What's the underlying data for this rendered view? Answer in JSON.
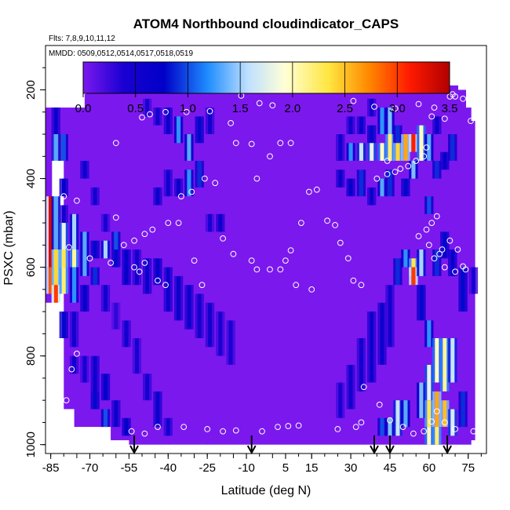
{
  "chart_data": {
    "type": "heatmap",
    "title": "ATOM4 Northbound cloudindicator_CAPS",
    "subtitle_flights": "Flts: 7,8,9,10,11,12",
    "subtitle_dates": "MMDD: 0509,0512,0514,0517,0518,0519",
    "xlabel": "Latitude (deg N)",
    "ylabel": "PSXC (mbar)",
    "xlim": [
      -87,
      82
    ],
    "ylim": [
      1020,
      100
    ],
    "x_ticks": [
      -85,
      -70,
      -55,
      -40,
      -25,
      -10,
      5,
      15,
      30,
      45,
      60,
      75
    ],
    "y_ticks": [
      200,
      400,
      600,
      800,
      1000
    ],
    "colorbar": {
      "range": [
        0,
        3.5
      ],
      "ticks": [
        0.0,
        0.5,
        1.0,
        1.5,
        2.0,
        2.5,
        3.0,
        3.5
      ],
      "tick_labels": [
        "0.0",
        "0.5",
        "1.0",
        "1.5",
        "2.0",
        "2.5",
        "3.0",
        "3.5"
      ],
      "colors": [
        "#7b18ee",
        "#1a00d2",
        "#0000c8",
        "#1f8cff",
        "#bfe0ff",
        "#ffffd6",
        "#ffe640",
        "#ff8800",
        "#ff1a00",
        "#b00000"
      ]
    },
    "columns": [
      {
        "lat": -85,
        "bins": [
          [
            440,
            600,
            3.3
          ],
          [
            600,
            660,
            2.9
          ]
        ]
      },
      {
        "lat": -83,
        "bins": [
          [
            240,
            300,
            0.6
          ],
          [
            300,
            360,
            1.3
          ],
          [
            440,
            560,
            1.3
          ],
          [
            560,
            640,
            2.4
          ],
          [
            640,
            680,
            3.0
          ]
        ]
      },
      {
        "lat": -80,
        "bins": [
          [
            300,
            360,
            1.0
          ],
          [
            400,
            440,
            0.7
          ],
          [
            460,
            500,
            0.5
          ],
          [
            500,
            560,
            1.8
          ],
          [
            560,
            600,
            2.3
          ],
          [
            600,
            660,
            2.2
          ],
          [
            700,
            760,
            0.8
          ]
        ]
      },
      {
        "lat": -76,
        "bins": [
          [
            480,
            560,
            1.5
          ],
          [
            560,
            600,
            2.1
          ],
          [
            600,
            680,
            1.2
          ],
          [
            700,
            780,
            0.5
          ],
          [
            800,
            840,
            0.5
          ]
        ]
      },
      {
        "lat": -72,
        "bins": [
          [
            360,
            400,
            0.6
          ],
          [
            520,
            560,
            1.3
          ],
          [
            560,
            620,
            1.3
          ],
          [
            640,
            700,
            0.7
          ],
          [
            800,
            860,
            0.4
          ]
        ]
      },
      {
        "lat": -68,
        "bins": [
          [
            420,
            460,
            0.5
          ],
          [
            540,
            580,
            0.8
          ],
          [
            600,
            640,
            0.9
          ],
          [
            800,
            880,
            0.6
          ],
          [
            880,
            920,
            0.8
          ]
        ]
      },
      {
        "lat": -64,
        "bins": [
          [
            480,
            520,
            0.4
          ],
          [
            540,
            580,
            1.5
          ],
          [
            640,
            700,
            0.5
          ],
          [
            840,
            900,
            0.7
          ],
          [
            920,
            960,
            1.0
          ]
        ]
      },
      {
        "lat": -60,
        "bins": [
          [
            520,
            560,
            1.0
          ],
          [
            560,
            600,
            0.8
          ],
          [
            680,
            740,
            0.3
          ],
          [
            900,
            960,
            0.6
          ]
        ]
      },
      {
        "lat": -56,
        "bins": [
          [
            560,
            640,
            0.7
          ],
          [
            720,
            780,
            0.5
          ],
          [
            940,
            980,
            0.7
          ]
        ]
      },
      {
        "lat": -52,
        "bins": [
          [
            560,
            640,
            0.5
          ],
          [
            760,
            840,
            0.4
          ]
        ]
      },
      {
        "lat": -48,
        "bins": [
          [
            220,
            260,
            0.4
          ],
          [
            580,
            660,
            0.6
          ],
          [
            840,
            900,
            0.5
          ]
        ]
      },
      {
        "lat": -44,
        "bins": [
          [
            240,
            280,
            0.5
          ],
          [
            420,
            460,
            0.6
          ],
          [
            580,
            640,
            0.7
          ],
          [
            880,
            960,
            0.6
          ]
        ]
      },
      {
        "lat": -40,
        "bins": [
          [
            240,
            300,
            0.6
          ],
          [
            380,
            440,
            0.5
          ],
          [
            600,
            700,
            0.6
          ],
          [
            940,
            980,
            0.5
          ]
        ]
      },
      {
        "lat": -36,
        "bins": [
          [
            260,
            320,
            1.2
          ],
          [
            400,
            440,
            0.6
          ],
          [
            620,
            720,
            0.6
          ]
        ]
      },
      {
        "lat": -32,
        "bins": [
          [
            300,
            360,
            1.3
          ],
          [
            380,
            440,
            1.2
          ],
          [
            640,
            740,
            0.6
          ]
        ]
      },
      {
        "lat": -28,
        "bins": [
          [
            260,
            320,
            0.8
          ],
          [
            360,
            420,
            0.9
          ],
          [
            660,
            760,
            0.5
          ]
        ]
      },
      {
        "lat": -24,
        "bins": [
          [
            240,
            300,
            0.5
          ],
          [
            480,
            520,
            0.4
          ],
          [
            680,
            780,
            0.5
          ]
        ]
      },
      {
        "lat": -20,
        "bins": [
          [
            480,
            520,
            0.6
          ],
          [
            700,
            800,
            0.4
          ]
        ]
      },
      {
        "lat": -16,
        "bins": [
          [
            720,
            820,
            0.4
          ]
        ]
      },
      {
        "lat": 26,
        "bins": [
          [
            300,
            360,
            0.5
          ],
          [
            380,
            420,
            0.6
          ],
          [
            860,
            940,
            0.4
          ]
        ]
      },
      {
        "lat": 30,
        "bins": [
          [
            260,
            300,
            0.5
          ],
          [
            320,
            360,
            1.2
          ],
          [
            400,
            440,
            0.7
          ],
          [
            820,
            920,
            0.5
          ]
        ]
      },
      {
        "lat": 34,
        "bins": [
          [
            260,
            300,
            0.6
          ],
          [
            320,
            360,
            1.6
          ],
          [
            380,
            440,
            0.9
          ],
          [
            760,
            880,
            0.5
          ]
        ]
      },
      {
        "lat": 38,
        "bins": [
          [
            220,
            260,
            0.5
          ],
          [
            280,
            320,
            0.8
          ],
          [
            320,
            360,
            1.8
          ],
          [
            420,
            460,
            0.6
          ],
          [
            700,
            860,
            0.6
          ]
        ]
      },
      {
        "lat": 42,
        "bins": [
          [
            240,
            300,
            1.2
          ],
          [
            320,
            360,
            2.0
          ],
          [
            400,
            440,
            1.3
          ],
          [
            680,
            820,
            0.6
          ],
          [
            940,
            980,
            1.0
          ]
        ]
      },
      {
        "lat": 45,
        "bins": [
          [
            240,
            300,
            1.4
          ],
          [
            300,
            360,
            2.2
          ],
          [
            380,
            440,
            0.9
          ],
          [
            640,
            780,
            0.5
          ],
          [
            940,
            980,
            1.4
          ]
        ]
      },
      {
        "lat": 48,
        "bins": [
          [
            280,
            320,
            0.9
          ],
          [
            320,
            360,
            2.4
          ],
          [
            580,
            640,
            0.9
          ],
          [
            900,
            980,
            1.6
          ]
        ]
      },
      {
        "lat": 51,
        "bins": [
          [
            300,
            360,
            2.6
          ],
          [
            400,
            440,
            0.8
          ],
          [
            560,
            600,
            1.2
          ],
          [
            900,
            960,
            1.3
          ]
        ]
      },
      {
        "lat": 54,
        "bins": [
          [
            300,
            340,
            3.1
          ],
          [
            360,
            400,
            1.4
          ],
          [
            580,
            620,
            2.3
          ],
          [
            600,
            640,
            3.0
          ]
        ]
      },
      {
        "lat": 57,
        "bins": [
          [
            280,
            360,
            2.0
          ],
          [
            560,
            620,
            1.5
          ],
          [
            640,
            720,
            0.8
          ],
          [
            860,
            940,
            1.4
          ]
        ]
      },
      {
        "lat": 60,
        "bins": [
          [
            300,
            360,
            1.3
          ],
          [
            440,
            480,
            1.0
          ],
          [
            720,
            780,
            1.2
          ],
          [
            820,
            900,
            1.8
          ],
          [
            900,
            960,
            2.3
          ],
          [
            960,
            1000,
            2.0
          ]
        ]
      },
      {
        "lat": 63,
        "bins": [
          [
            260,
            300,
            0.6
          ],
          [
            360,
            400,
            0.9
          ],
          [
            560,
            620,
            0.9
          ],
          [
            760,
            860,
            2.0
          ],
          [
            880,
            960,
            2.6
          ],
          [
            960,
            1000,
            2.2
          ]
        ]
      },
      {
        "lat": 66,
        "bins": [
          [
            340,
            380,
            0.7
          ],
          [
            520,
            580,
            0.8
          ],
          [
            760,
            880,
            2.1
          ],
          [
            900,
            960,
            2.5
          ]
        ]
      },
      {
        "lat": 69,
        "bins": [
          [
            300,
            360,
            0.9
          ],
          [
            560,
            620,
            0.7
          ],
          [
            760,
            860,
            1.6
          ],
          [
            920,
            980,
            1.7
          ]
        ]
      },
      {
        "lat": 73,
        "bins": [
          [
            600,
            700,
            0.8
          ],
          [
            880,
            960,
            0.9
          ]
        ]
      },
      {
        "lat": 77,
        "bins": [
          [
            600,
            660,
            0.4
          ]
        ]
      }
    ],
    "arrow_latitudes": [
      -53,
      -8,
      39,
      45,
      67
    ],
    "flight_points": [
      [
        -86,
        215
      ],
      [
        -80,
        215
      ],
      [
        -75,
        205
      ],
      [
        -72,
        203
      ],
      [
        -68,
        190
      ],
      [
        -65,
        190
      ],
      [
        -62,
        190
      ],
      [
        -58,
        190
      ],
      [
        -60,
        320
      ],
      [
        -50,
        262
      ],
      [
        -47,
        255
      ],
      [
        -41,
        250
      ],
      [
        -33,
        250
      ],
      [
        -24,
        248
      ],
      [
        -12,
        213
      ],
      [
        -5,
        230
      ],
      [
        0,
        235
      ],
      [
        -1,
        350
      ],
      [
        3,
        320
      ],
      [
        7,
        320
      ],
      [
        -8,
        322
      ],
      [
        -16,
        275
      ],
      [
        -14,
        320
      ],
      [
        31,
        225
      ],
      [
        39,
        238
      ],
      [
        47,
        242
      ],
      [
        56,
        232
      ],
      [
        62,
        240
      ],
      [
        68,
        215
      ],
      [
        70,
        215
      ],
      [
        73,
        220
      ],
      [
        69,
        210
      ],
      [
        76,
        270
      ],
      [
        66,
        265
      ],
      [
        61,
        260
      ],
      [
        -35,
        440
      ],
      [
        -31,
        430
      ],
      [
        -26,
        400
      ],
      [
        -22,
        410
      ],
      [
        -6,
        400
      ],
      [
        -75,
        450
      ],
      [
        -80,
        440
      ],
      [
        -60,
        488
      ],
      [
        -53,
        540
      ],
      [
        -49,
        525
      ],
      [
        -46,
        515
      ],
      [
        -40,
        500
      ],
      [
        -36,
        500
      ],
      [
        -19,
        535
      ],
      [
        -15,
        570
      ],
      [
        -8,
        585
      ],
      [
        -6,
        605
      ],
      [
        -1,
        605
      ],
      [
        3,
        605
      ],
      [
        5,
        585
      ],
      [
        7,
        562
      ],
      [
        11,
        500
      ],
      [
        14,
        430
      ],
      [
        17,
        425
      ],
      [
        21,
        495
      ],
      [
        24,
        505
      ],
      [
        26,
        545
      ],
      [
        29,
        580
      ],
      [
        31,
        630
      ],
      [
        34,
        640
      ],
      [
        -53,
        600
      ],
      [
        -51,
        610
      ],
      [
        -49,
        590
      ],
      [
        -57,
        550
      ],
      [
        -62,
        590
      ],
      [
        -70,
        580
      ],
      [
        -78,
        555
      ],
      [
        40,
        400
      ],
      [
        44,
        390
      ],
      [
        47,
        385
      ],
      [
        49,
        378
      ],
      [
        52,
        372
      ],
      [
        55,
        360
      ],
      [
        58,
        350
      ],
      [
        59,
        330
      ],
      [
        56,
        530
      ],
      [
        59,
        515
      ],
      [
        61,
        500
      ],
      [
        63,
        485
      ],
      [
        60,
        550
      ],
      [
        64,
        570
      ],
      [
        66,
        600
      ],
      [
        70,
        610
      ],
      [
        73,
        598
      ],
      [
        74,
        605
      ],
      [
        71,
        560
      ],
      [
        68,
        540
      ],
      [
        62,
        580
      ],
      [
        65,
        560
      ],
      [
        -83,
        960
      ],
      [
        -79,
        900
      ],
      [
        -77,
        830
      ],
      [
        -75,
        795
      ],
      [
        -54,
        970
      ],
      [
        -49,
        975
      ],
      [
        -44,
        960
      ],
      [
        -34,
        960
      ],
      [
        -25,
        965
      ],
      [
        -19,
        970
      ],
      [
        -14,
        968
      ],
      [
        -4,
        970
      ],
      [
        2,
        960
      ],
      [
        6,
        958
      ],
      [
        10,
        957
      ],
      [
        25,
        965
      ],
      [
        32,
        960
      ],
      [
        34,
        950
      ],
      [
        50,
        960
      ],
      [
        54,
        975
      ],
      [
        58,
        970
      ],
      [
        61,
        948
      ],
      [
        63,
        925
      ],
      [
        66,
        950
      ],
      [
        70,
        965
      ],
      [
        77,
        970
      ],
      [
        79,
        960
      ],
      [
        45,
        945
      ],
      [
        41,
        910
      ],
      [
        35,
        870
      ],
      [
        15,
        650
      ],
      [
        9,
        640
      ],
      [
        44,
        360
      ],
      [
        -41,
        640
      ],
      [
        -27,
        640
      ],
      [
        -30,
        585
      ],
      [
        -44,
        630
      ]
    ]
  }
}
